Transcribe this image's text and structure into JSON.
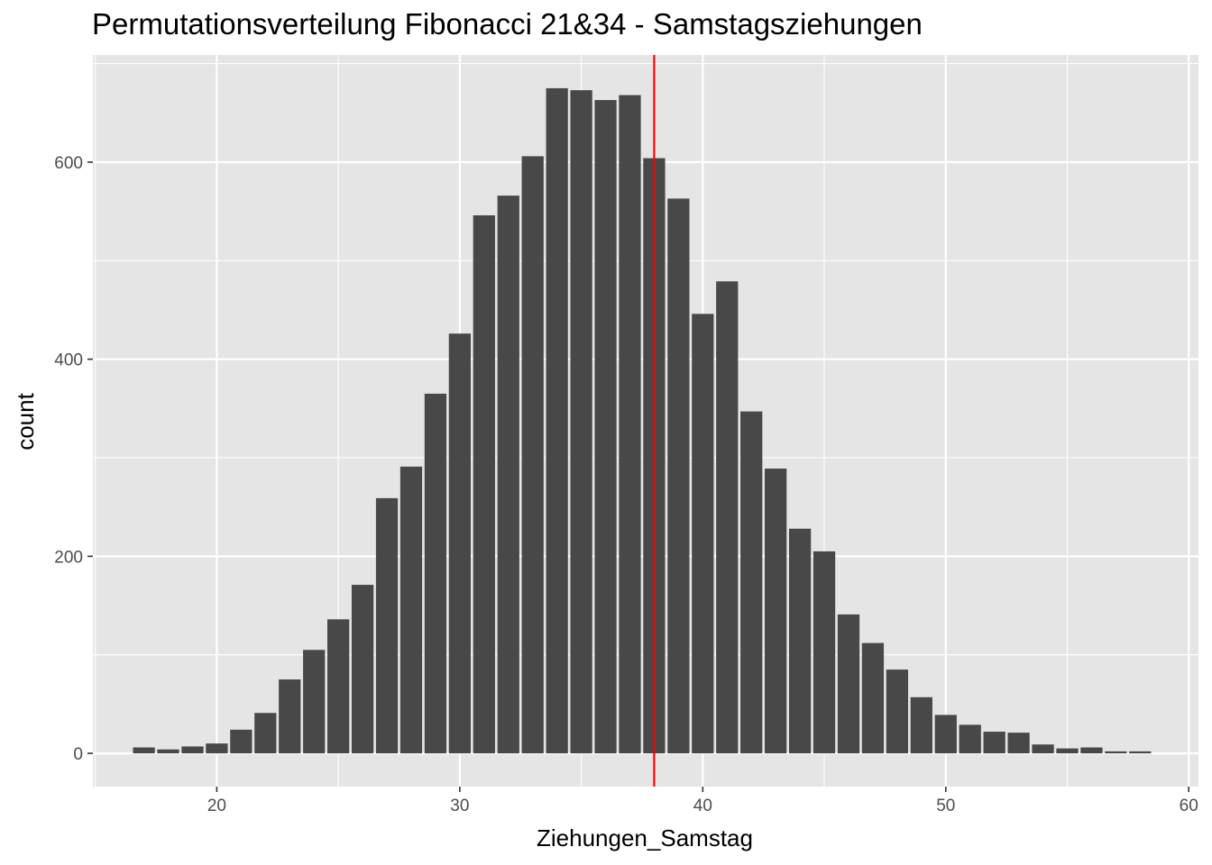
{
  "chart_data": {
    "type": "bar",
    "title": "Permutationsverteilung Fibonacci 21&34 - Samstagsziehungen",
    "xlabel": "Ziehungen_Samstag",
    "ylabel": "count",
    "x": [
      17,
      18,
      19,
      20,
      21,
      22,
      23,
      24,
      25,
      26,
      27,
      28,
      29,
      30,
      31,
      32,
      33,
      34,
      35,
      36,
      37,
      38,
      39,
      40,
      41,
      42,
      43,
      44,
      45,
      46,
      47,
      48,
      49,
      50,
      51,
      52,
      53,
      54,
      55,
      56,
      57,
      58
    ],
    "values": [
      6,
      4,
      7,
      10,
      24,
      41,
      75,
      105,
      136,
      171,
      259,
      291,
      365,
      426,
      546,
      566,
      606,
      675,
      673,
      663,
      668,
      604,
      563,
      446,
      479,
      347,
      289,
      228,
      205,
      141,
      112,
      85,
      57,
      39,
      29,
      22,
      21,
      9,
      5,
      6,
      2,
      2
    ],
    "xlim": [
      14.9,
      60.4
    ],
    "ylim": [
      -33.75,
      708.75
    ],
    "xticks": [
      20,
      30,
      40,
      50,
      60
    ],
    "yticks": [
      0,
      200,
      400,
      600
    ],
    "reference_line": {
      "x": 38,
      "color": "#ff0000"
    },
    "grid": true,
    "colors": {
      "bar": "#484848",
      "panel": "#e5e5e5",
      "grid": "#ffffff"
    }
  }
}
